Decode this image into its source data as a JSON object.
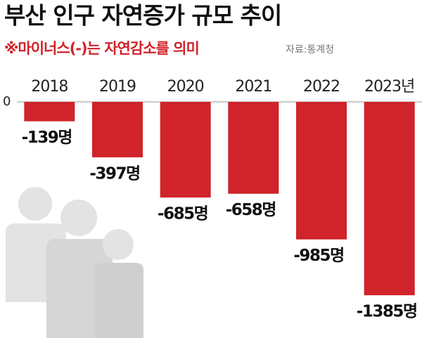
{
  "chart_data": {
    "type": "bar",
    "title": "부산 인구 자연증가 규모 추이",
    "subtitle": "※마이너스(-)는 자연감소를 의미",
    "source": "자료:통계청",
    "categories": [
      "2018",
      "2019",
      "2020",
      "2021",
      "2022",
      "2023년"
    ],
    "values": [
      -139,
      -397,
      -685,
      -658,
      -985,
      -1385
    ],
    "value_labels": [
      "-139명",
      "-397명",
      "-685명",
      "-658명",
      "-985명",
      "-1385명"
    ],
    "color": "#d0232a",
    "ylim": [
      -1500,
      0
    ],
    "yticks": [
      0
    ]
  }
}
